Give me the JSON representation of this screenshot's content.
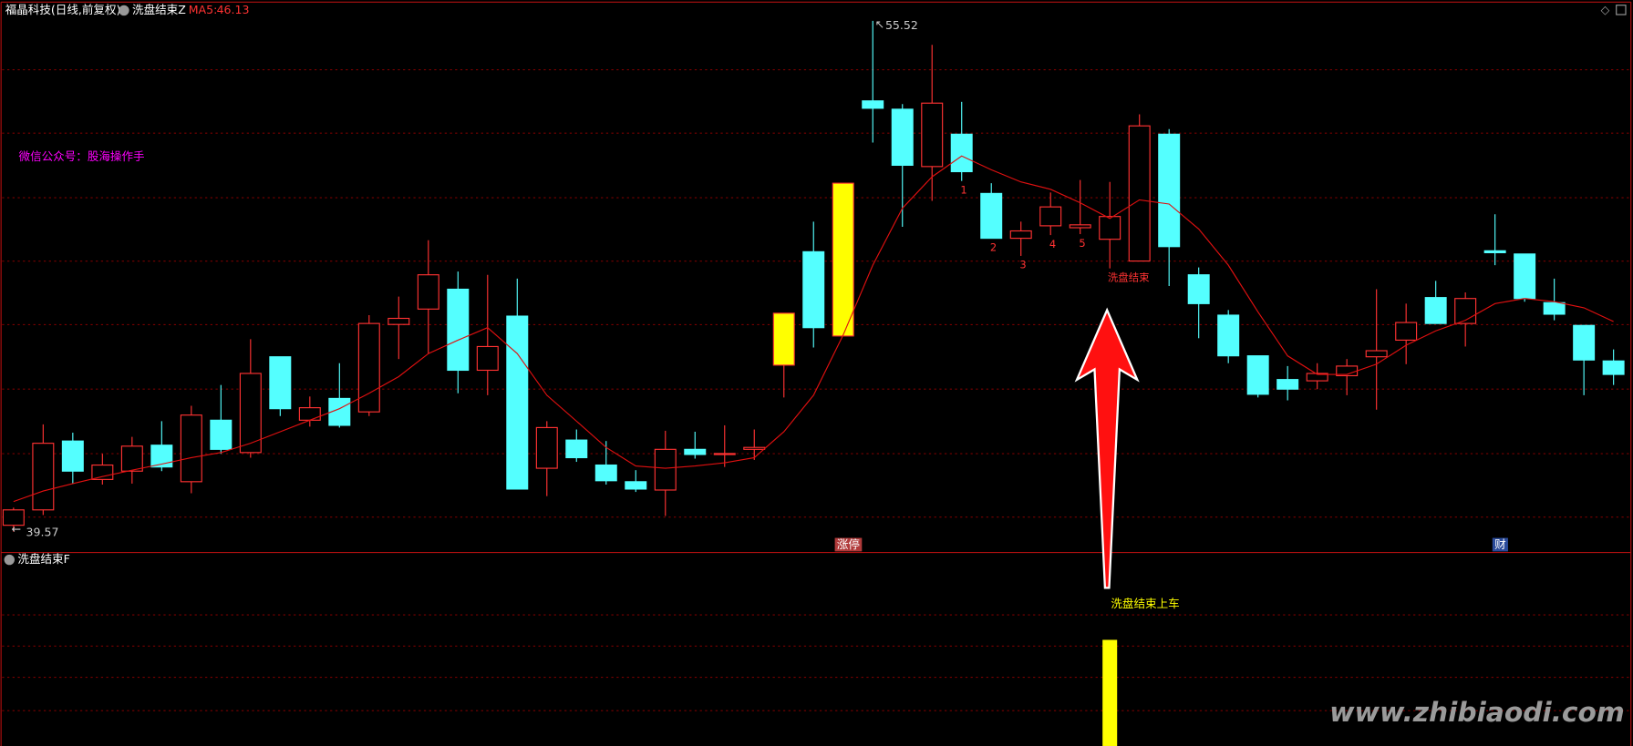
{
  "chart_data": {
    "type": "candlestick",
    "title": "福晶科技(日线,前复权)",
    "indicator_name": "洗盘结束Z",
    "watermark_note": "微信公众号：股海操作手",
    "candles": {
      "open": [
        39.77,
        40.25,
        42.4,
        41.2,
        41.46,
        42.27,
        41.13,
        43.05,
        42.04,
        45.03,
        43.05,
        43.73,
        43.31,
        46.04,
        46.52,
        47.14,
        44.61,
        46.3,
        41.55,
        42.43,
        41.65,
        41.13,
        40.87,
        42.14,
        41.98,
        42.14,
        44.77,
        48.31,
        45.68,
        53.02,
        52.76,
        50.97,
        51.98,
        50.13,
        48.73,
        49.12,
        49.06,
        48.7,
        48.02,
        51.98,
        47.59,
        46.33,
        45.06,
        44.32,
        44.28,
        44.44,
        45.03,
        45.55,
        46.88,
        46.07,
        48.34,
        48.24,
        46.72,
        46.01,
        44.9
      ],
      "high": [
        40.32,
        42.92,
        42.66,
        42.0,
        42.53,
        43.02,
        43.5,
        44.15,
        45.58,
        45.03,
        43.79,
        44.83,
        46.33,
        46.91,
        48.67,
        47.69,
        47.59,
        47.47,
        43.02,
        42.76,
        42.4,
        41.49,
        42.72,
        42.69,
        42.89,
        42.76,
        46.39,
        49.25,
        50.45,
        55.52,
        52.92,
        54.77,
        52.99,
        50.45,
        49.25,
        50.16,
        50.55,
        50.49,
        52.6,
        52.14,
        47.82,
        46.49,
        45.06,
        44.74,
        44.83,
        44.96,
        47.14,
        46.69,
        47.4,
        47.04,
        49.48,
        48.24,
        47.47,
        46.01,
        45.26
      ],
      "low": [
        39.57,
        40.09,
        41.07,
        41.04,
        41.07,
        41.46,
        40.77,
        42.0,
        41.88,
        43.18,
        42.85,
        42.82,
        43.18,
        44.96,
        45.13,
        43.89,
        43.83,
        40.9,
        40.68,
        41.75,
        41.04,
        40.81,
        40.06,
        41.85,
        41.59,
        41.81,
        43.76,
        45.32,
        45.68,
        51.72,
        49.09,
        49.9,
        50.52,
        48.73,
        48.18,
        48.83,
        48.86,
        47.79,
        48.02,
        47.24,
        45.61,
        44.83,
        43.76,
        43.67,
        44.02,
        43.83,
        43.38,
        44.8,
        46.07,
        45.35,
        47.89,
        46.75,
        46.17,
        43.83,
        44.15
      ],
      "close": [
        40.25,
        42.33,
        41.46,
        41.65,
        42.24,
        41.59,
        43.21,
        42.14,
        44.51,
        43.41,
        43.44,
        42.89,
        46.07,
        46.23,
        47.59,
        44.61,
        45.35,
        40.9,
        42.82,
        41.88,
        41.16,
        40.9,
        42.14,
        41.98,
        42.01,
        42.2,
        46.39,
        45.94,
        50.45,
        52.79,
        51.01,
        52.95,
        50.81,
        48.73,
        48.96,
        49.71,
        49.15,
        49.41,
        52.24,
        48.47,
        46.69,
        45.06,
        43.86,
        44.02,
        44.51,
        44.74,
        45.22,
        46.1,
        46.07,
        46.85,
        48.28,
        46.85,
        46.36,
        44.93,
        44.48
      ]
    },
    "up_color": "#ff3232",
    "down_color": "#54ffff",
    "highlight_color": "#ffff00",
    "highlight": [
      26,
      28
    ],
    "ma": {
      "name": "MA5:",
      "color": "#e01010",
      "values": [
        40.51,
        40.84,
        41.07,
        41.29,
        41.49,
        41.68,
        41.88,
        42.04,
        42.33,
        42.69,
        43.05,
        43.41,
        43.89,
        44.41,
        45.13,
        45.55,
        45.94,
        45.13,
        43.83,
        43.02,
        42.2,
        41.62,
        41.55,
        41.62,
        41.72,
        41.88,
        42.69,
        43.83,
        45.71,
        47.89,
        49.67,
        50.65,
        51.3,
        50.87,
        50.49,
        50.26,
        49.84,
        49.35,
        49.93,
        49.8,
        49.02,
        47.89,
        46.43,
        45.06,
        44.48,
        44.48,
        44.8,
        45.39,
        45.84,
        46.17,
        46.69,
        46.85,
        46.75,
        46.56,
        46.13
      ]
    },
    "annotations": [
      {
        "index": 32,
        "text": "1"
      },
      {
        "index": 33,
        "text": "2"
      },
      {
        "index": 34,
        "text": "3"
      },
      {
        "index": 35,
        "text": "4"
      },
      {
        "index": 36,
        "text": "5"
      },
      {
        "index": 37,
        "text": "洗盘结束"
      }
    ],
    "tags": [
      {
        "index": 28,
        "text": "涨停",
        "color": "#b03a3a"
      },
      {
        "index": 50,
        "text": "财",
        "color": "#2a4a9a"
      }
    ],
    "lower_panel": {
      "name": "洗盘结束F",
      "signals": [
        {
          "index": 37,
          "label": "洗盘结束上车",
          "color": "#ffff00"
        }
      ]
    },
    "site": "www.zhibiaodi.com"
  }
}
